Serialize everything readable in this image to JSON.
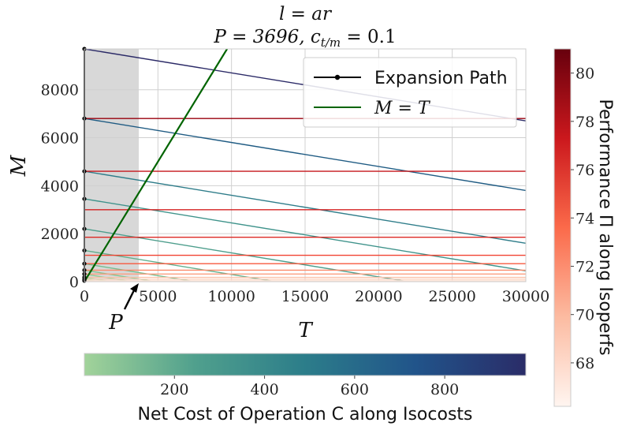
{
  "chart_data": {
    "type": "line",
    "title_line1": "l = ar",
    "title_line2": "P = 3696, c",
    "title_line2_sub": "t/m",
    "title_line2_tail": " = 0.1",
    "xlabel": "T",
    "ylabel": "M",
    "xlim": [
      0,
      30000
    ],
    "ylim": [
      0,
      9700
    ],
    "xticks": [
      "0",
      "5000",
      "10000",
      "15000",
      "20000",
      "25000",
      "30000"
    ],
    "yticks": [
      "0",
      "2000",
      "4000",
      "6000",
      "8000"
    ],
    "grid": true,
    "shaded_region": {
      "x0": 0,
      "x1": 3696,
      "color": "#d8d8d8"
    },
    "p_marker": {
      "label": "P",
      "x": 3696
    },
    "legend": {
      "placement": "top-right",
      "entries": [
        "Expansion Path",
        "M = T"
      ]
    },
    "expansion_path": {
      "name": "Expansion Path",
      "color": "#000000",
      "x": [
        0,
        0,
        0,
        0,
        0,
        0,
        0,
        0,
        0,
        0,
        0,
        0
      ],
      "y": [
        40,
        100,
        180,
        320,
        480,
        750,
        1300,
        2200,
        3450,
        4600,
        6800,
        9700
      ]
    },
    "m_equals_t": {
      "name": "M = T",
      "color": "#006400",
      "x": [
        0,
        9700
      ],
      "y": [
        0,
        9700
      ]
    },
    "isoperfs": [
      {
        "level": 66.5,
        "M": 40,
        "color": "#fee4d8"
      },
      {
        "level": 67,
        "M": 100,
        "color": "#fdd5c3"
      },
      {
        "level": 68,
        "M": 180,
        "color": "#fcc2aa"
      },
      {
        "level": 70,
        "M": 320,
        "color": "#fc9f81"
      },
      {
        "level": 71.5,
        "M": 480,
        "color": "#fb8a6b"
      },
      {
        "level": 72.5,
        "M": 750,
        "color": "#f7593f"
      },
      {
        "level": 74,
        "M": 1100,
        "color": "#f14432"
      },
      {
        "level": 75,
        "M": 1850,
        "color": "#dc2a25"
      },
      {
        "level": 76,
        "M": 3000,
        "color": "#d42020"
      },
      {
        "level": 77,
        "M": 4600,
        "color": "#c5171c"
      },
      {
        "level": 79,
        "M": 6800,
        "color": "#99000d"
      }
    ],
    "isocosts": [
      {
        "cost": 25,
        "M0": 100,
        "slope": -0.1,
        "color": "#a1d39a"
      },
      {
        "cost": 40,
        "M0": 180,
        "slope": -0.1,
        "color": "#9ad097"
      },
      {
        "cost": 55,
        "M0": 320,
        "slope": -0.1,
        "color": "#90cb93"
      },
      {
        "cost": 80,
        "M0": 480,
        "slope": -0.1,
        "color": "#80c491"
      },
      {
        "cost": 120,
        "M0": 750,
        "slope": -0.1,
        "color": "#74bd8f"
      },
      {
        "cost": 200,
        "M0": 1300,
        "slope": -0.1,
        "color": "#62ae8d"
      },
      {
        "cost": 330,
        "M0": 2200,
        "slope": -0.1,
        "color": "#4d9e8c"
      },
      {
        "cost": 420,
        "M0": 3450,
        "slope": -0.1,
        "color": "#3f938b"
      },
      {
        "cost": 560,
        "M0": 4600,
        "slope": -0.1,
        "color": "#2f7d8a"
      },
      {
        "cost": 730,
        "M0": 6800,
        "slope": -0.1,
        "color": "#1f5b83"
      },
      {
        "cost": 960,
        "M0": 9700,
        "slope": -0.1,
        "color": "#2b2a67"
      }
    ],
    "colorbar_perf": {
      "label": "Performance Π along Isoperfs",
      "min": 66.2,
      "max": 81,
      "ticks": [
        "68",
        "70",
        "72",
        "74",
        "76",
        "78",
        "80"
      ],
      "colors": [
        "#fff5f0",
        "#fcbba1",
        "#fb6a4a",
        "#cb181d",
        "#67000d"
      ]
    },
    "colorbar_cost": {
      "label": "Net Cost of Operation C along Isocosts",
      "min": 0,
      "max": 980,
      "ticks": [
        "200",
        "400",
        "600",
        "800"
      ],
      "colors": [
        "#a2d39a",
        "#50a08d",
        "#2c7d8a",
        "#21548a",
        "#2a2c68"
      ]
    }
  }
}
